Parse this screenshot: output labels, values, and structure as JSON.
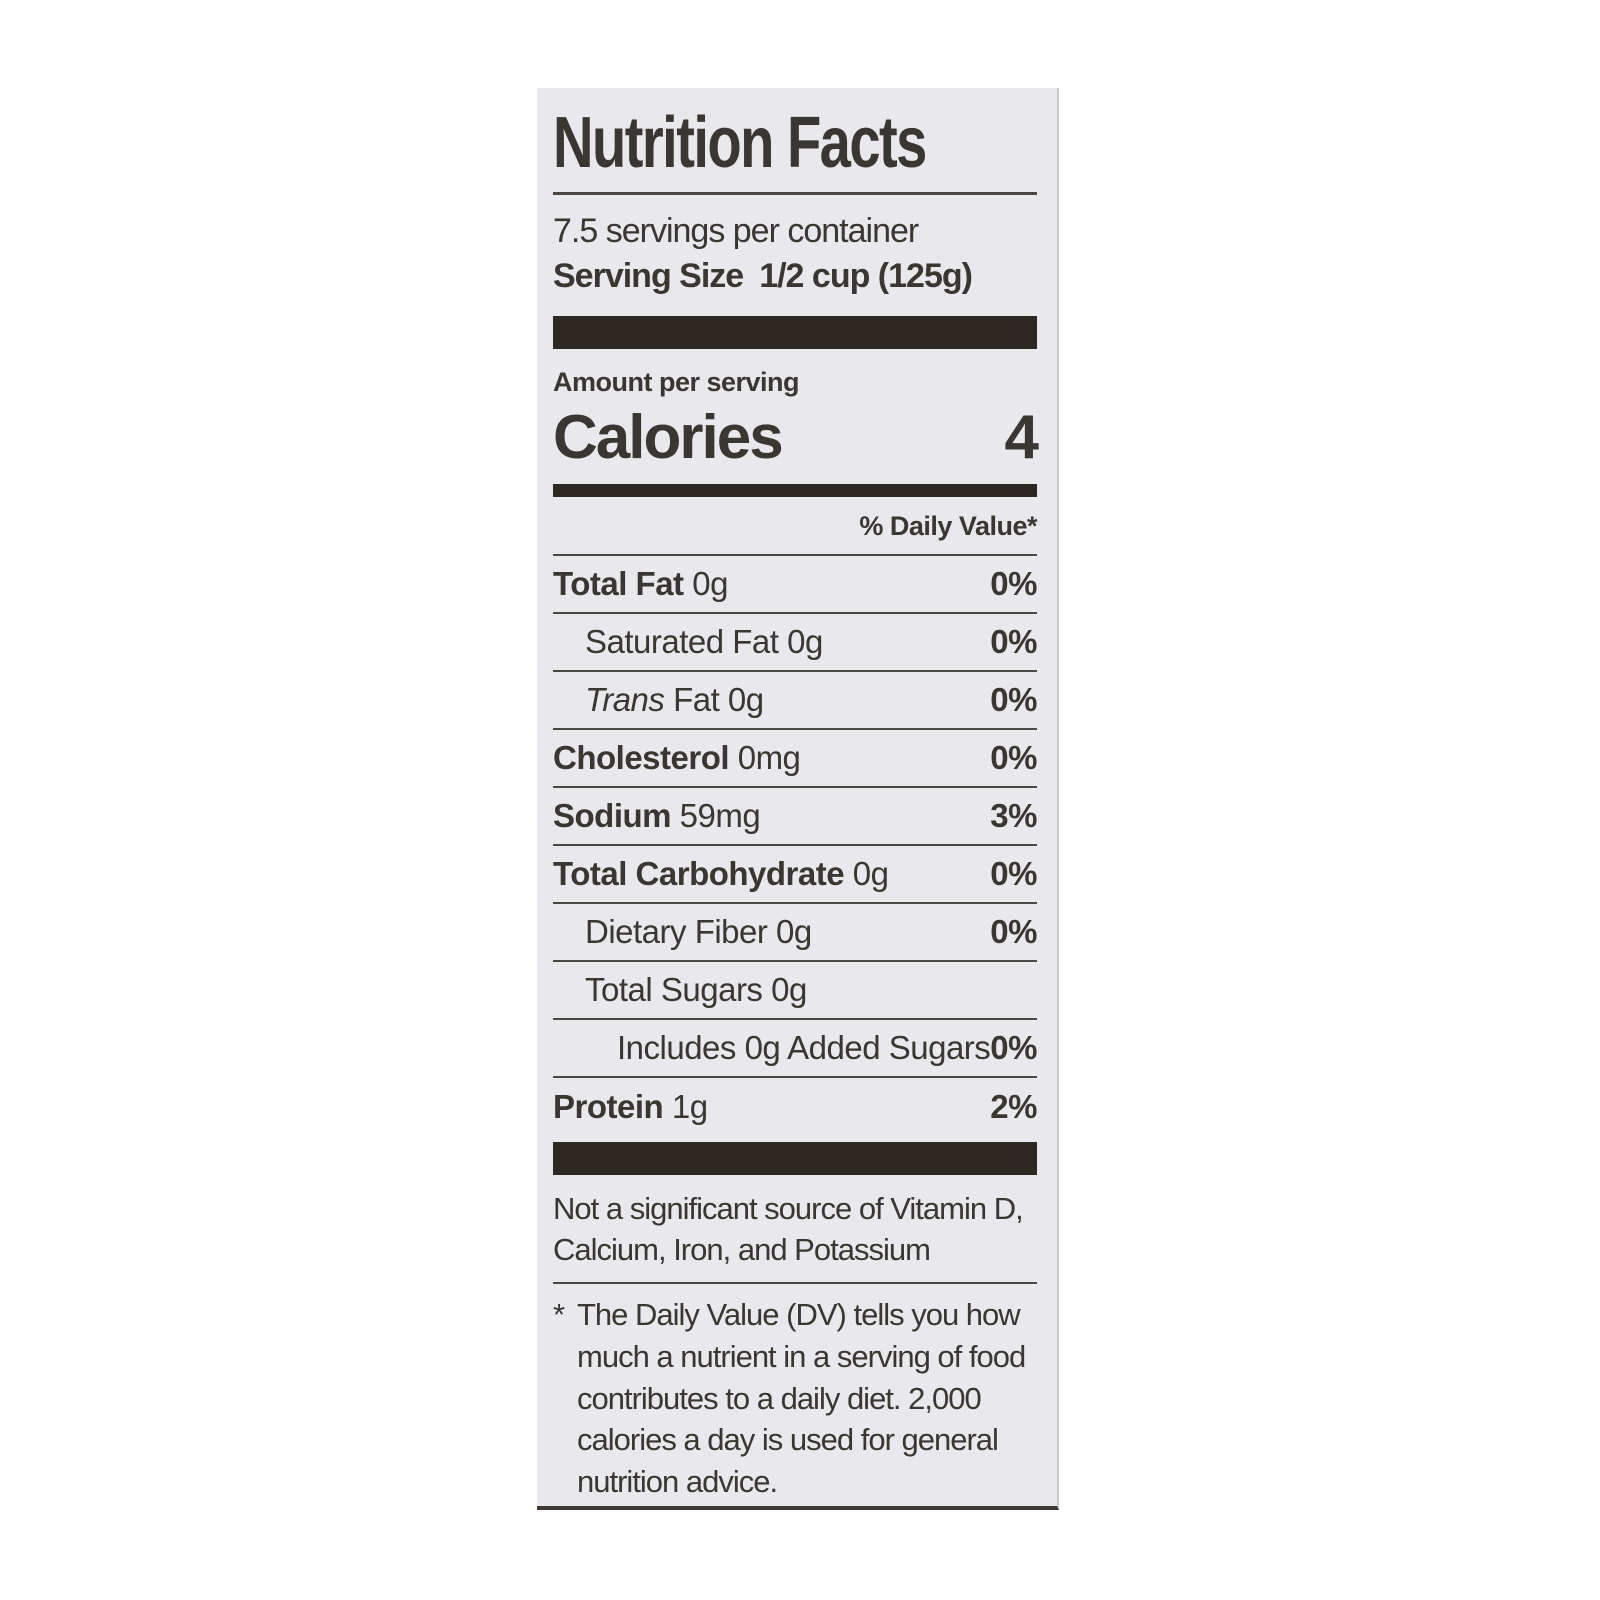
{
  "colors": {
    "page_bg": "#ffffff",
    "label_bg": "#e9e8ec",
    "text": "#3a3631",
    "bar": "#2d2822",
    "rule": "#4c4742",
    "edge": "#3f3a34"
  },
  "label": {
    "title": "Nutrition Facts",
    "servings_per_container": "7.5 servings per container",
    "serving_size_label": "Serving Size",
    "serving_size_value": "1/2 cup (125g)",
    "amount_per_serving": "Amount per serving",
    "calories_label": "Calories",
    "calories_value": "4",
    "daily_value_header": "% Daily Value*",
    "rows": [
      {
        "name": "Total Fat",
        "name_bold": true,
        "amount": "0g",
        "dv": "0%",
        "indent": 0
      },
      {
        "name": "Saturated Fat",
        "amount": "0g",
        "dv": "0%",
        "indent": 1
      },
      {
        "name_italic": "Trans",
        "name": "Fat",
        "amount": "0g",
        "dv": "0%",
        "indent": 1
      },
      {
        "name": "Cholesterol",
        "name_bold": true,
        "amount": "0mg",
        "dv": "0%",
        "indent": 0
      },
      {
        "name": "Sodium",
        "name_bold": true,
        "amount": "59mg",
        "dv": "3%",
        "indent": 0
      },
      {
        "name": "Total Carbohydrate",
        "name_bold": true,
        "amount": "0g",
        "dv": "0%",
        "indent": 0
      },
      {
        "name": "Dietary Fiber",
        "amount": "0g",
        "dv": "0%",
        "indent": 1
      },
      {
        "name": "Total Sugars",
        "amount": "0g",
        "dv": "",
        "indent": 1
      },
      {
        "name": "Includes 0g Added Sugars",
        "amount": "",
        "dv": "0%",
        "indent": 2
      },
      {
        "name": "Protein",
        "name_bold": true,
        "amount": "1g",
        "dv": "2%",
        "indent": 0,
        "last": true
      }
    ],
    "not_significant": "Not a significant source of Vitamin D, Calcium, Iron, and Potassium",
    "footnote_marker": "*",
    "footnote": "The Daily Value (DV) tells you how much a nutrient in a serving of food contributes to a daily diet. 2,000 calories a day is used for general nutrition advice."
  }
}
